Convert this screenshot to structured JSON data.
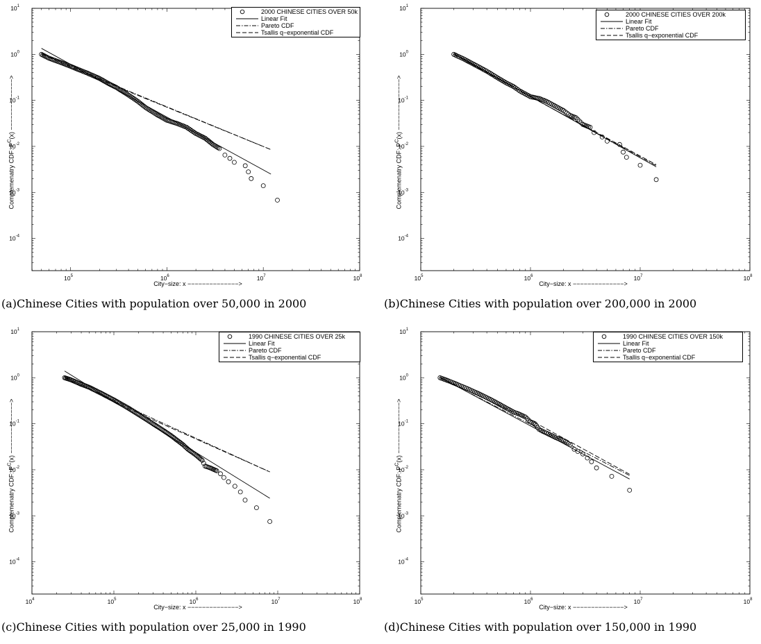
{
  "chart_data": [
    {
      "id": "a",
      "type": "scatter",
      "scale": "log-log",
      "caption": "(a)Chinese Cities with population over 50,000 in 2000",
      "xlabel": "City−size: x −−−−−−−−−−−−−−>",
      "ylabel": "Complemenatry CDF: P",
      "ylabel_sup": "C",
      "ylabel_tail": "(x) −−−−−−−−−−−−−−>",
      "xlim_exp": [
        4.6,
        8
      ],
      "ylim_exp": [
        -4.7,
        1
      ],
      "xticks_exp": [
        5,
        6,
        7,
        8
      ],
      "yticks_exp": [
        -4,
        -3,
        -2,
        -1,
        0,
        1
      ],
      "legend": [
        "2000 CHINESE CITIES OVER 50k",
        "Linear Fit",
        "Pareto CDF",
        "Tsallis q−exponential CDF"
      ],
      "data_points": [
        [
          50000,
          1.0
        ],
        [
          60000,
          0.82
        ],
        [
          80000,
          0.66
        ],
        [
          100000,
          0.55
        ],
        [
          120000,
          0.47
        ],
        [
          150000,
          0.39
        ],
        [
          200000,
          0.3
        ],
        [
          250000,
          0.23
        ],
        [
          300000,
          0.19
        ],
        [
          400000,
          0.13
        ],
        [
          500000,
          0.095
        ],
        [
          600000,
          0.07
        ],
        [
          800000,
          0.048
        ],
        [
          1000000,
          0.037
        ],
        [
          1300000,
          0.031
        ],
        [
          1600000,
          0.026
        ],
        [
          2000000,
          0.019
        ],
        [
          2500000,
          0.015
        ],
        [
          3000000,
          0.011
        ],
        [
          3500000,
          0.009
        ],
        [
          4000000,
          0.0065
        ],
        [
          4500000,
          0.0055
        ],
        [
          5000000,
          0.0045
        ],
        [
          6500000,
          0.0038
        ],
        [
          7000000,
          0.0028
        ],
        [
          7500000,
          0.002
        ],
        [
          10000000,
          0.0014
        ],
        [
          14000000,
          0.00068
        ]
      ],
      "linear_fit": [
        [
          50000,
          1.35
        ],
        [
          12000000,
          0.0025
        ]
      ],
      "pareto": [
        [
          50000,
          1.05
        ],
        [
          400000,
          0.16
        ],
        [
          12000000,
          0.0085
        ]
      ],
      "tsallis": [
        [
          50000,
          1.0
        ],
        [
          400000,
          0.155
        ],
        [
          12000000,
          0.0085
        ]
      ]
    },
    {
      "id": "b",
      "type": "scatter",
      "scale": "log-log",
      "caption": "(b)Chinese Cities with population over 200,000 in 2000",
      "xlabel": "City−size: x −−−−−−−−−−−−−−>",
      "ylabel": "Complemenatry CDF: P",
      "ylabel_sup": "C",
      "ylabel_tail": "(x) −−−−−−−−−−−−−−>",
      "xlim_exp": [
        5,
        8
      ],
      "ylim_exp": [
        -4.7,
        1
      ],
      "xticks_exp": [
        5,
        6,
        7,
        8
      ],
      "yticks_exp": [
        -4,
        -3,
        -2,
        -1,
        0,
        1
      ],
      "legend": [
        "2000 CHINESE CITIES OVER 200k",
        "Linear Fit",
        "Pareto CDF",
        "Tsallis q−exponential CDF"
      ],
      "data_points": [
        [
          200000,
          1.0
        ],
        [
          250000,
          0.78
        ],
        [
          300000,
          0.62
        ],
        [
          400000,
          0.43
        ],
        [
          500000,
          0.31
        ],
        [
          600000,
          0.24
        ],
        [
          700000,
          0.2
        ],
        [
          800000,
          0.16
        ],
        [
          1000000,
          0.12
        ],
        [
          1200000,
          0.11
        ],
        [
          1400000,
          0.095
        ],
        [
          1600000,
          0.08
        ],
        [
          2000000,
          0.06
        ],
        [
          2300000,
          0.047
        ],
        [
          2600000,
          0.042
        ],
        [
          3000000,
          0.03
        ],
        [
          3500000,
          0.026
        ],
        [
          3800000,
          0.02
        ],
        [
          4500000,
          0.016
        ],
        [
          5000000,
          0.013
        ],
        [
          6500000,
          0.011
        ],
        [
          7000000,
          0.0075
        ],
        [
          7500000,
          0.0058
        ],
        [
          10000000,
          0.0039
        ],
        [
          14000000,
          0.0019
        ]
      ],
      "linear_fit": [
        [
          200000,
          1.05
        ],
        [
          14000000,
          0.0036
        ]
      ],
      "pareto": [
        [
          200000,
          1.0
        ],
        [
          14000000,
          0.0038
        ]
      ],
      "tsallis": [
        [
          200000,
          1.0
        ],
        [
          1000000,
          0.12
        ],
        [
          14000000,
          0.004
        ]
      ]
    },
    {
      "id": "c",
      "type": "scatter",
      "scale": "log-log",
      "caption": "(c)Chinese Cities with population over 25,000 in 1990",
      "xlabel": "City−size: x −−−−−−−−−−−−−−>",
      "ylabel": "Complemenatry CDF: P",
      "ylabel_sup": "C",
      "ylabel_tail": "(x) −−−−−−−−−−−−−−>",
      "xlim_exp": [
        4,
        8
      ],
      "ylim_exp": [
        -4.7,
        1
      ],
      "xticks_exp": [
        4,
        5,
        6,
        7,
        8
      ],
      "yticks_exp": [
        -4,
        -3,
        -2,
        -1,
        0,
        1
      ],
      "legend": [
        "1990 CHINESE CITIES OVER 25k",
        "Linear Fit",
        "Pareto CDF",
        "Tsallis q−exponential CDF"
      ],
      "data_points": [
        [
          25000,
          1.0
        ],
        [
          30000,
          0.9
        ],
        [
          40000,
          0.72
        ],
        [
          50000,
          0.62
        ],
        [
          70000,
          0.46
        ],
        [
          100000,
          0.33
        ],
        [
          150000,
          0.22
        ],
        [
          200000,
          0.16
        ],
        [
          300000,
          0.1
        ],
        [
          400000,
          0.072
        ],
        [
          500000,
          0.055
        ],
        [
          600000,
          0.043
        ],
        [
          700000,
          0.035
        ],
        [
          800000,
          0.028
        ],
        [
          1000000,
          0.021
        ],
        [
          1200000,
          0.016
        ],
        [
          1300000,
          0.012
        ],
        [
          1500000,
          0.011
        ],
        [
          1800000,
          0.0095
        ],
        [
          2000000,
          0.0082
        ],
        [
          2200000,
          0.0068
        ],
        [
          2500000,
          0.0055
        ],
        [
          3000000,
          0.0044
        ],
        [
          3500000,
          0.0033
        ],
        [
          4000000,
          0.0022
        ],
        [
          5500000,
          0.0015
        ],
        [
          8000000,
          0.00075
        ]
      ],
      "linear_fit": [
        [
          25000,
          1.4
        ],
        [
          8000000,
          0.0024
        ]
      ],
      "pareto": [
        [
          25000,
          1.05
        ],
        [
          250000,
          0.15
        ],
        [
          8000000,
          0.009
        ]
      ],
      "tsallis": [
        [
          25000,
          1.0
        ],
        [
          250000,
          0.14
        ],
        [
          8000000,
          0.009
        ]
      ]
    },
    {
      "id": "d",
      "type": "scatter",
      "scale": "log-log",
      "caption": "(d)Chinese Cities with population over 150,000 in 1990",
      "xlabel": "City−size: x −−−−−−−−−−−−−−>",
      "ylabel": "Complemenatry CDF: P",
      "ylabel_sup": "C",
      "ylabel_tail": "(x) −−−−−−−−−−−−−−>",
      "xlim_exp": [
        5,
        8
      ],
      "ylim_exp": [
        -4.7,
        1
      ],
      "xticks_exp": [
        5,
        6,
        7,
        8
      ],
      "yticks_exp": [
        -4,
        -3,
        -2,
        -1,
        0,
        1
      ],
      "legend": [
        "1990 CHINESE CITIES OVER 150k",
        "Linear Fit",
        "Pareto CDF",
        "Tsallis q−exponential CDF"
      ],
      "data_points": [
        [
          150000,
          1.0
        ],
        [
          180000,
          0.85
        ],
        [
          220000,
          0.7
        ],
        [
          270000,
          0.57
        ],
        [
          330000,
          0.46
        ],
        [
          400000,
          0.37
        ],
        [
          500000,
          0.28
        ],
        [
          600000,
          0.22
        ],
        [
          700000,
          0.18
        ],
        [
          800000,
          0.16
        ],
        [
          900000,
          0.14
        ],
        [
          1000000,
          0.11
        ],
        [
          1100000,
          0.1
        ],
        [
          1200000,
          0.075
        ],
        [
          1300000,
          0.068
        ],
        [
          1500000,
          0.058
        ],
        [
          1700000,
          0.05
        ],
        [
          2000000,
          0.043
        ],
        [
          2300000,
          0.035
        ],
        [
          2500000,
          0.028
        ],
        [
          2700000,
          0.025
        ],
        [
          3000000,
          0.022
        ],
        [
          3300000,
          0.018
        ],
        [
          3600000,
          0.015
        ],
        [
          4000000,
          0.011
        ],
        [
          5500000,
          0.0072
        ],
        [
          8000000,
          0.0036
        ]
      ],
      "linear_fit": [
        [
          150000,
          1.02
        ],
        [
          8000000,
          0.0063
        ]
      ],
      "pareto": [
        [
          150000,
          1.0
        ],
        [
          8000000,
          0.0075
        ]
      ],
      "tsallis": [
        [
          150000,
          1.0
        ],
        [
          1000000,
          0.12
        ],
        [
          8000000,
          0.008
        ]
      ]
    }
  ]
}
